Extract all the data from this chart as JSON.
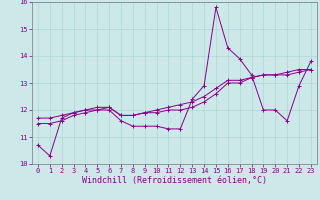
{
  "xlabel": "Windchill (Refroidissement éolien,°C)",
  "background_color": "#cce8e8",
  "line_color": "#880088",
  "grid_color": "#aad8d8",
  "hours": [
    0,
    1,
    2,
    3,
    4,
    5,
    6,
    7,
    8,
    9,
    10,
    11,
    12,
    13,
    14,
    15,
    16,
    17,
    18,
    19,
    20,
    21,
    22,
    23
  ],
  "line1": [
    10.7,
    10.3,
    11.7,
    11.9,
    12.0,
    12.0,
    12.0,
    11.6,
    11.4,
    11.4,
    11.4,
    11.3,
    11.3,
    12.4,
    12.9,
    15.8,
    14.3,
    13.9,
    13.3,
    12.0,
    12.0,
    11.6,
    12.9,
    13.8
  ],
  "line2": [
    11.7,
    11.7,
    11.8,
    11.9,
    12.0,
    12.1,
    12.1,
    11.8,
    11.8,
    11.9,
    11.9,
    12.0,
    12.0,
    12.1,
    12.3,
    12.6,
    13.0,
    13.0,
    13.2,
    13.3,
    13.3,
    13.3,
    13.4,
    13.5
  ],
  "line3": [
    11.5,
    11.5,
    11.6,
    11.8,
    11.9,
    12.0,
    12.1,
    11.8,
    11.8,
    11.9,
    12.0,
    12.1,
    12.2,
    12.3,
    12.5,
    12.8,
    13.1,
    13.1,
    13.2,
    13.3,
    13.3,
    13.4,
    13.5,
    13.5
  ],
  "ylim": [
    10,
    16
  ],
  "xlim": [
    -0.5,
    23.5
  ],
  "yticks": [
    10,
    11,
    12,
    13,
    14,
    15,
    16
  ],
  "xticks": [
    0,
    1,
    2,
    3,
    4,
    5,
    6,
    7,
    8,
    9,
    10,
    11,
    12,
    13,
    14,
    15,
    16,
    17,
    18,
    19,
    20,
    21,
    22,
    23
  ],
  "tick_fontsize": 5.0,
  "xlabel_fontsize": 6.0
}
